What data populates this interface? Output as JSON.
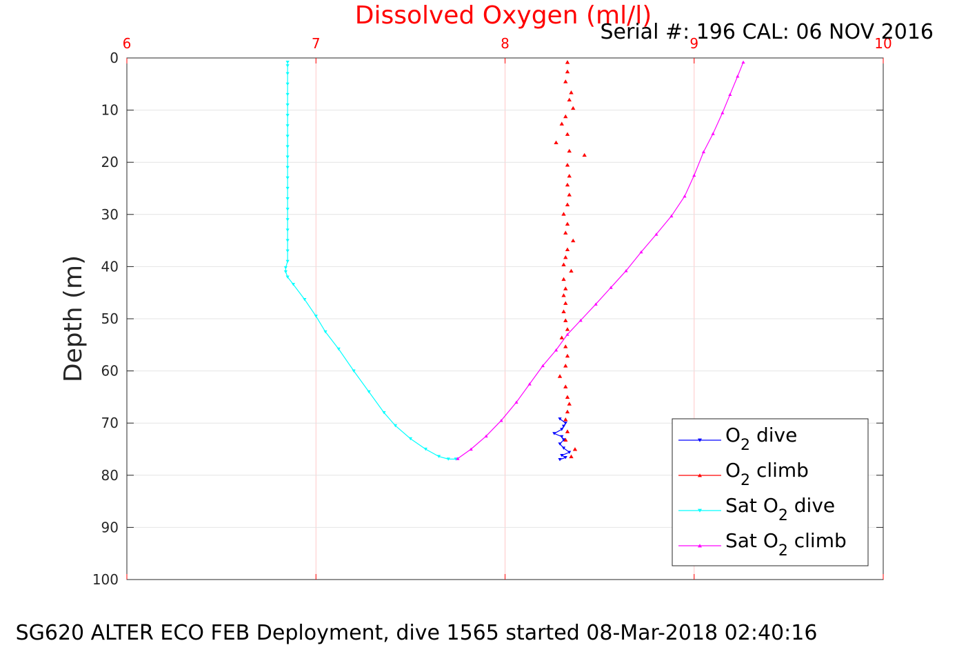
{
  "chart_data": {
    "type": "scatter",
    "title": "Dissolved Oxygen (ml/l)",
    "subtitle": "Serial #: 196  CAL: 06 NOV 2016",
    "caption": "SG620 ALTER ECO FEB Deployment, dive 1565 started 08-Mar-2018 02:40:16",
    "xlabel": "Dissolved Oxygen (ml/l)",
    "ylabel": "Depth (m)",
    "xlim": [
      6,
      10
    ],
    "ylim": [
      0,
      100
    ],
    "y_reversed": true,
    "x_axis_position": "top",
    "xticks": [
      "6",
      "7",
      "8",
      "9",
      "10"
    ],
    "yticks": [
      "0",
      "10",
      "20",
      "30",
      "40",
      "50",
      "60",
      "70",
      "80",
      "90",
      "100"
    ],
    "grid": true,
    "legend_position": "bottom-right",
    "legend": [
      {
        "base": "O",
        "sub": "2",
        "suffix": " dive",
        "prefix": ""
      },
      {
        "base": "O",
        "sub": "2",
        "suffix": " climb",
        "prefix": ""
      },
      {
        "base": "O",
        "sub": "2",
        "suffix": " dive",
        "prefix": "Sat "
      },
      {
        "base": "O",
        "sub": "2",
        "suffix": " climb",
        "prefix": "Sat "
      }
    ],
    "series": [
      {
        "name": "O2 dive",
        "color": "#0000ff",
        "marker": "triangle-down",
        "line": true,
        "points": [
          [
            8.29,
            69.2
          ],
          [
            8.32,
            70.0
          ],
          [
            8.31,
            70.6
          ],
          [
            8.3,
            71.2
          ],
          [
            8.26,
            72.0
          ],
          [
            8.3,
            72.6
          ],
          [
            8.31,
            73.2
          ],
          [
            8.29,
            74.0
          ],
          [
            8.31,
            74.8
          ],
          [
            8.34,
            75.6
          ],
          [
            8.3,
            76.2
          ],
          [
            8.32,
            76.6
          ],
          [
            8.29,
            77.0
          ]
        ]
      },
      {
        "name": "O2 climb",
        "color": "#ff0000",
        "marker": "triangle-up",
        "line": false,
        "points": [
          [
            8.33,
            0.8
          ],
          [
            8.33,
            2.6
          ],
          [
            8.32,
            4.5
          ],
          [
            8.35,
            6.6
          ],
          [
            8.34,
            8.0
          ],
          [
            8.36,
            9.6
          ],
          [
            8.32,
            11.2
          ],
          [
            8.3,
            12.6
          ],
          [
            8.33,
            14.6
          ],
          [
            8.27,
            16.2
          ],
          [
            8.34,
            17.8
          ],
          [
            8.42,
            18.6
          ],
          [
            8.33,
            20.5
          ],
          [
            8.34,
            22.6
          ],
          [
            8.33,
            24.3
          ],
          [
            8.34,
            26.2
          ],
          [
            8.33,
            28.1
          ],
          [
            8.31,
            29.9
          ],
          [
            8.33,
            31.8
          ],
          [
            8.32,
            33.5
          ],
          [
            8.36,
            35.0
          ],
          [
            8.33,
            36.7
          ],
          [
            8.32,
            38.2
          ],
          [
            8.31,
            39.6
          ],
          [
            8.35,
            40.8
          ],
          [
            8.31,
            42.4
          ],
          [
            8.32,
            44.2
          ],
          [
            8.31,
            45.5
          ],
          [
            8.32,
            47.0
          ],
          [
            8.31,
            48.6
          ],
          [
            8.32,
            50.3
          ],
          [
            8.33,
            52.0
          ],
          [
            8.3,
            53.6
          ],
          [
            8.32,
            55.3
          ],
          [
            8.33,
            57.1
          ],
          [
            8.32,
            59.0
          ],
          [
            8.29,
            61.0
          ],
          [
            8.32,
            63.0
          ],
          [
            8.33,
            65.0
          ],
          [
            8.34,
            66.3
          ],
          [
            8.33,
            67.8
          ],
          [
            8.32,
            69.3
          ],
          [
            8.33,
            71.6
          ],
          [
            8.32,
            73.2
          ],
          [
            8.37,
            75.0
          ],
          [
            8.35,
            76.4
          ]
        ]
      },
      {
        "name": "Sat O2 dive",
        "color": "#00ffff",
        "marker": "triangle-down",
        "line": true,
        "points": [
          [
            6.85,
            0.8
          ],
          [
            6.85,
            1.5
          ],
          [
            6.85,
            3.0
          ],
          [
            6.85,
            5.0
          ],
          [
            6.85,
            7.0
          ],
          [
            6.85,
            9.0
          ],
          [
            6.85,
            11.0
          ],
          [
            6.85,
            13.0
          ],
          [
            6.85,
            15.0
          ],
          [
            6.85,
            17.0
          ],
          [
            6.85,
            19.0
          ],
          [
            6.85,
            21.0
          ],
          [
            6.85,
            23.0
          ],
          [
            6.85,
            25.0
          ],
          [
            6.85,
            27.0
          ],
          [
            6.85,
            29.0
          ],
          [
            6.85,
            31.0
          ],
          [
            6.85,
            33.0
          ],
          [
            6.85,
            35.0
          ],
          [
            6.85,
            37.0
          ],
          [
            6.85,
            39.0
          ],
          [
            6.84,
            40.2
          ],
          [
            6.84,
            41.0
          ],
          [
            6.85,
            42.0
          ],
          [
            6.88,
            43.4
          ],
          [
            6.94,
            46.3
          ],
          [
            7.0,
            49.5
          ],
          [
            7.05,
            52.5
          ],
          [
            7.12,
            55.8
          ],
          [
            7.2,
            60.0
          ],
          [
            7.28,
            64.0
          ],
          [
            7.36,
            68.0
          ],
          [
            7.42,
            70.5
          ],
          [
            7.5,
            73.0
          ],
          [
            7.58,
            75.0
          ],
          [
            7.65,
            76.4
          ],
          [
            7.7,
            76.9
          ],
          [
            7.74,
            76.9
          ]
        ]
      },
      {
        "name": "Sat O2 climb",
        "color": "#ff00ff",
        "marker": "triangle-up",
        "line": true,
        "points": [
          [
            7.75,
            76.8
          ],
          [
            7.82,
            75.0
          ],
          [
            7.9,
            72.5
          ],
          [
            7.98,
            69.5
          ],
          [
            8.06,
            66.0
          ],
          [
            8.13,
            62.5
          ],
          [
            8.2,
            59.0
          ],
          [
            8.27,
            56.0
          ],
          [
            8.33,
            53.0
          ],
          [
            8.4,
            50.3
          ],
          [
            8.48,
            47.2
          ],
          [
            8.56,
            44.0
          ],
          [
            8.64,
            40.8
          ],
          [
            8.72,
            37.2
          ],
          [
            8.8,
            33.8
          ],
          [
            8.88,
            30.3
          ],
          [
            8.95,
            26.5
          ],
          [
            9.0,
            22.5
          ],
          [
            9.05,
            18.0
          ],
          [
            9.1,
            14.5
          ],
          [
            9.15,
            10.5
          ],
          [
            9.19,
            7.0
          ],
          [
            9.23,
            3.5
          ],
          [
            9.26,
            0.8
          ]
        ]
      }
    ]
  }
}
